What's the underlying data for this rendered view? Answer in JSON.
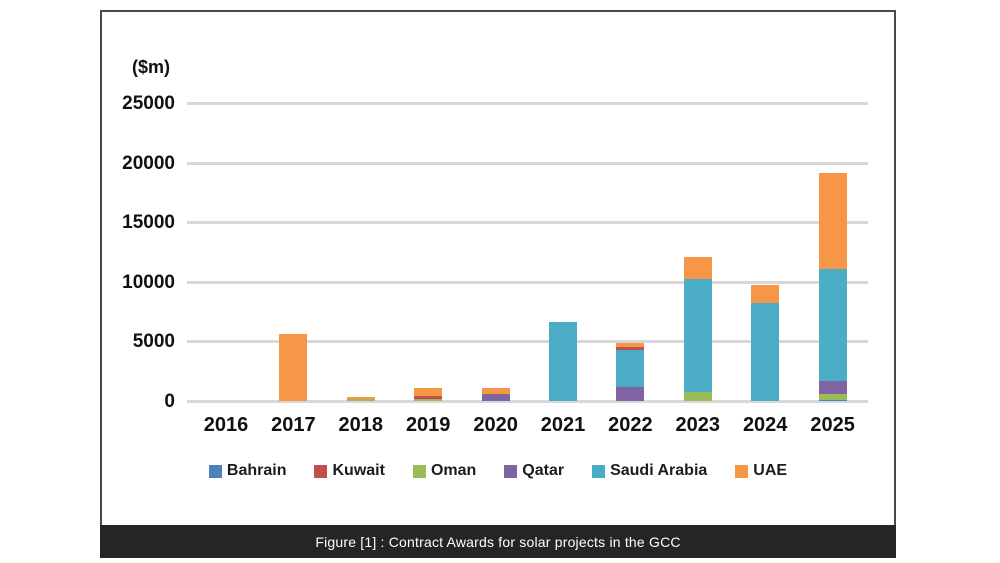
{
  "figure": {
    "y_axis_unit_label": "($m)",
    "caption": "Figure [1] : Contract Awards for solar projects in the GCC"
  },
  "chart_data": {
    "type": "bar",
    "stacked": true,
    "title": "",
    "xlabel": "",
    "ylabel": "($m)",
    "grid": true,
    "legend_position": "bottom",
    "categories": [
      "2016",
      "2017",
      "2018",
      "2019",
      "2020",
      "2021",
      "2022",
      "2023",
      "2024",
      "2025"
    ],
    "series": [
      {
        "name": "Bahrain",
        "color": "#4F81BD",
        "values": [
          0,
          0,
          0,
          0,
          0,
          0,
          0,
          0,
          0,
          150
        ]
      },
      {
        "name": "Kuwait",
        "color": "#C0504D",
        "values": [
          0,
          0,
          0,
          250,
          0,
          0,
          250,
          0,
          0,
          0
        ]
      },
      {
        "name": "Oman",
        "color": "#9BBB59",
        "values": [
          0,
          0,
          250,
          200,
          0,
          0,
          0,
          800,
          0,
          450
        ]
      },
      {
        "name": "Qatar",
        "color": "#8064A2",
        "values": [
          0,
          0,
          0,
          0,
          650,
          0,
          1250,
          0,
          0,
          1100
        ]
      },
      {
        "name": "Saudi Arabia",
        "color": "#4BACC6",
        "values": [
          0,
          0,
          0,
          0,
          0,
          6700,
          3050,
          9500,
          8300,
          9400
        ]
      },
      {
        "name": "UAE",
        "color": "#F79646",
        "values": [
          0,
          5700,
          150,
          650,
          450,
          0,
          350,
          1800,
          1500,
          8100
        ]
      }
    ],
    "stack_order": [
      "Bahrain",
      "Oman",
      "Qatar",
      "Saudi Arabia",
      "Kuwait",
      "UAE"
    ],
    "y_ticks": [
      0,
      5000,
      10000,
      15000,
      20000,
      25000
    ],
    "ylim": [
      0,
      26500
    ],
    "totals_by_year": [
      0,
      5700,
      400,
      1100,
      1100,
      6700,
      4900,
      12100,
      9800,
      19200
    ]
  }
}
